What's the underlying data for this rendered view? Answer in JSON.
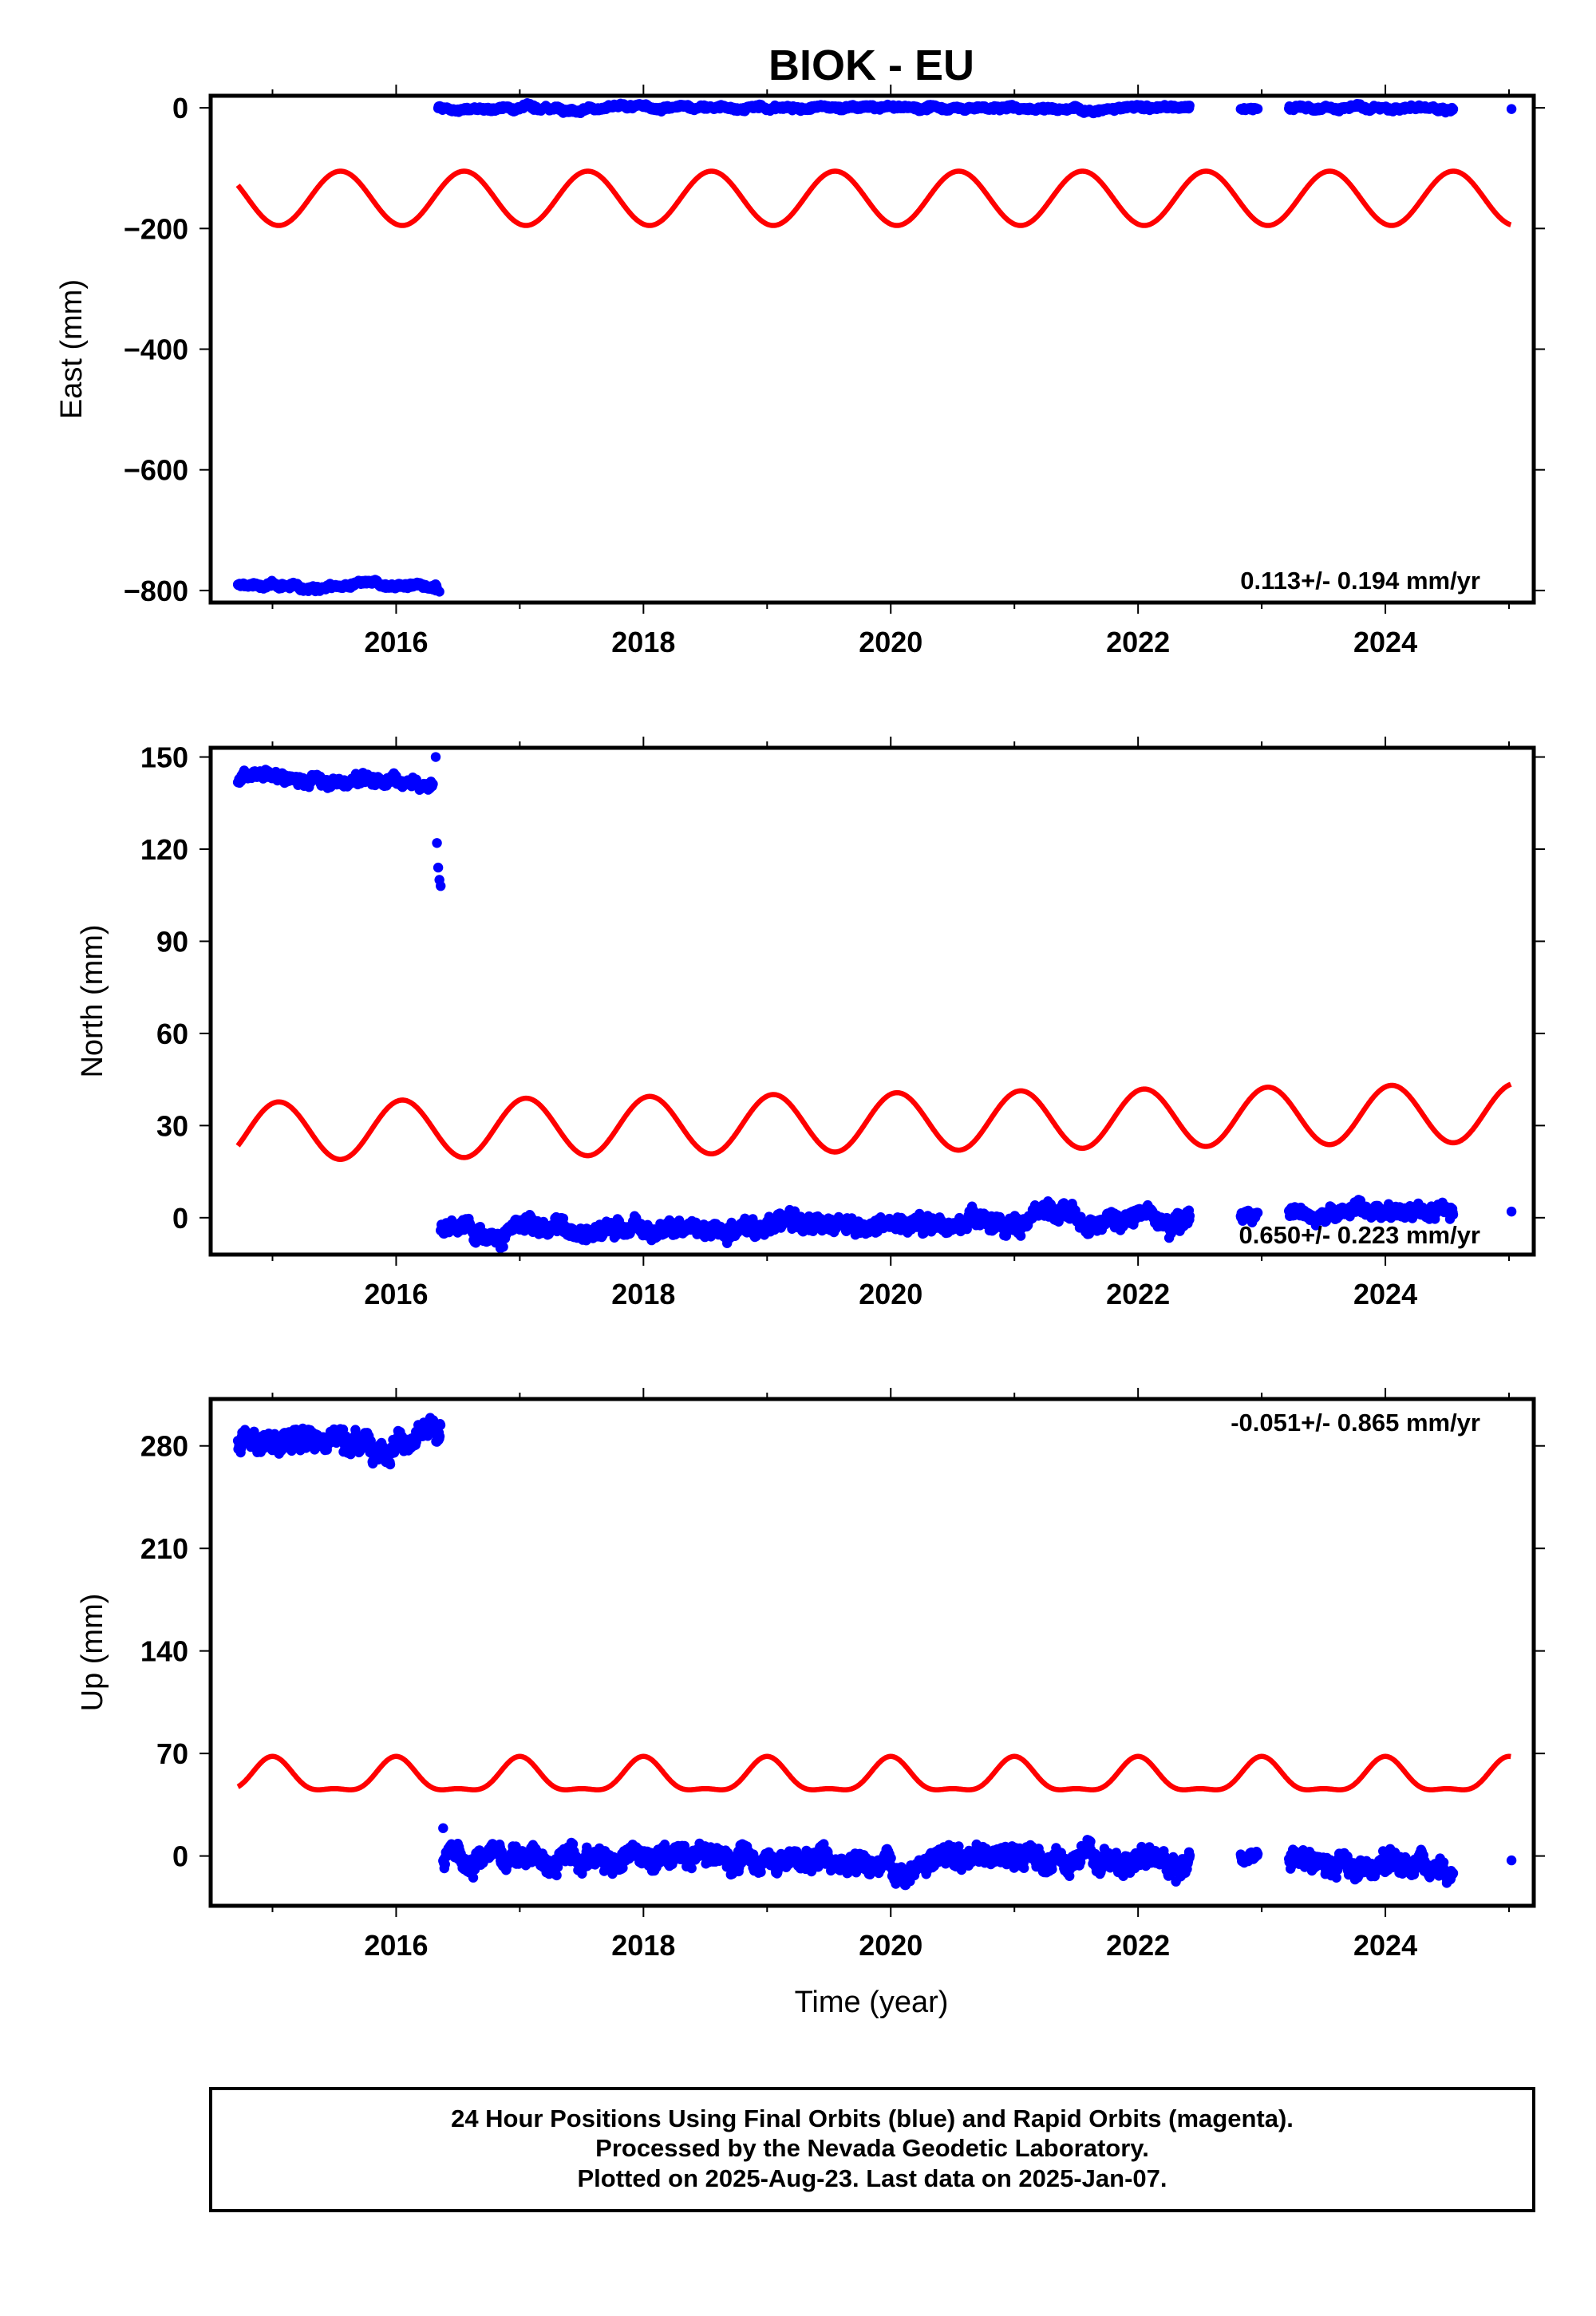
{
  "title": "BIOK - EU",
  "footer": {
    "lines": [
      "24 Hour Positions Using Final Orbits (blue) and Rapid Orbits (magenta).",
      "Processed by the Nevada Geodetic Laboratory.",
      "Plotted on 2025-Aug-23. Last data on 2025-Jan-07."
    ]
  },
  "colors": {
    "final_orbits": "#0000ff",
    "model": "#ff0000",
    "frame": "#000000"
  },
  "chart_data": [
    {
      "type": "scatter",
      "name": "east",
      "ylabel": "East (mm)",
      "xlabel": "",
      "rate_text": "0.113+/- 0.194 mm/yr",
      "xlim": [
        2014.5,
        2025.2
      ],
      "ylim": [
        -820,
        20
      ],
      "xticks": [
        2016,
        2018,
        2020,
        2022,
        2024
      ],
      "yticks": [
        0,
        -200,
        -400,
        -600,
        -800
      ],
      "data_segments": [
        {
          "start": 2014.72,
          "end": 2016.33,
          "level": -792,
          "noise": 3
        },
        {
          "start": 2016.34,
          "end": 2022.42,
          "level": 0,
          "noise": 2.5
        },
        {
          "start": 2022.83,
          "end": 2022.97,
          "level": -2,
          "noise": 1.5
        },
        {
          "start": 2023.22,
          "end": 2024.55,
          "level": 0,
          "noise": 2.5
        }
      ],
      "extra_points": [
        [
          2016.32,
          -800
        ],
        [
          2016.35,
          -802
        ],
        [
          2025.02,
          -2
        ]
      ],
      "model": {
        "offset": -150,
        "annual_amp": 45,
        "semiannual_amp": 0,
        "trend": 0,
        "phase_peak": 0.55
      }
    },
    {
      "type": "scatter",
      "name": "north",
      "ylabel": "North (mm)",
      "xlabel": "",
      "rate_text": "0.650+/- 0.223 mm/yr",
      "xlim": [
        2014.5,
        2025.2
      ],
      "ylim": [
        -12,
        153
      ],
      "xticks": [
        2016,
        2018,
        2020,
        2022,
        2024
      ],
      "yticks": [
        150,
        120,
        90,
        60,
        30,
        0
      ],
      "data_segments": [
        {
          "start": 2014.72,
          "end": 2016.3,
          "level": 143,
          "noise": 1.2
        },
        {
          "start": 2016.36,
          "end": 2022.42,
          "level": -4,
          "noise": 1.8,
          "slope": 0.8
        },
        {
          "start": 2022.83,
          "end": 2022.97,
          "level": 1,
          "noise": 1.2
        },
        {
          "start": 2023.22,
          "end": 2024.55,
          "level": 2,
          "noise": 1.5
        }
      ],
      "extra_points": [
        [
          2016.32,
          150
        ],
        [
          2016.33,
          122
        ],
        [
          2016.34,
          114
        ],
        [
          2016.35,
          110
        ],
        [
          2016.36,
          108
        ],
        [
          2025.02,
          2
        ]
      ],
      "model": {
        "offset": 28,
        "annual_amp": 9.5,
        "semiannual_amp": 0,
        "trend": 0.6,
        "phase_peak": 0.05
      }
    },
    {
      "type": "scatter",
      "name": "up",
      "ylabel": "Up (mm)",
      "xlabel": "Time (year)",
      "rate_text": "-0.051+/- 0.865 mm/yr",
      "xlim": [
        2014.5,
        2025.2
      ],
      "ylim": [
        -34,
        312
      ],
      "xticks": [
        2016,
        2018,
        2020,
        2022,
        2024
      ],
      "yticks": [
        280,
        210,
        140,
        70,
        0
      ],
      "data_segments": [
        {
          "start": 2014.72,
          "end": 2016.36,
          "level": 285,
          "noise": 5
        },
        {
          "start": 2016.38,
          "end": 2022.42,
          "level": -2,
          "noise": 5
        },
        {
          "start": 2022.83,
          "end": 2022.97,
          "level": -2,
          "noise": 3
        },
        {
          "start": 2023.22,
          "end": 2024.55,
          "level": -3,
          "noise": 5
        }
      ],
      "extra_points": [
        [
          2016.38,
          19
        ],
        [
          2025.02,
          -3
        ]
      ],
      "model": {
        "offset": 53,
        "annual_amp": 11,
        "semiannual_amp": 4,
        "trend": 0,
        "phase_peak": 0.0
      }
    }
  ]
}
